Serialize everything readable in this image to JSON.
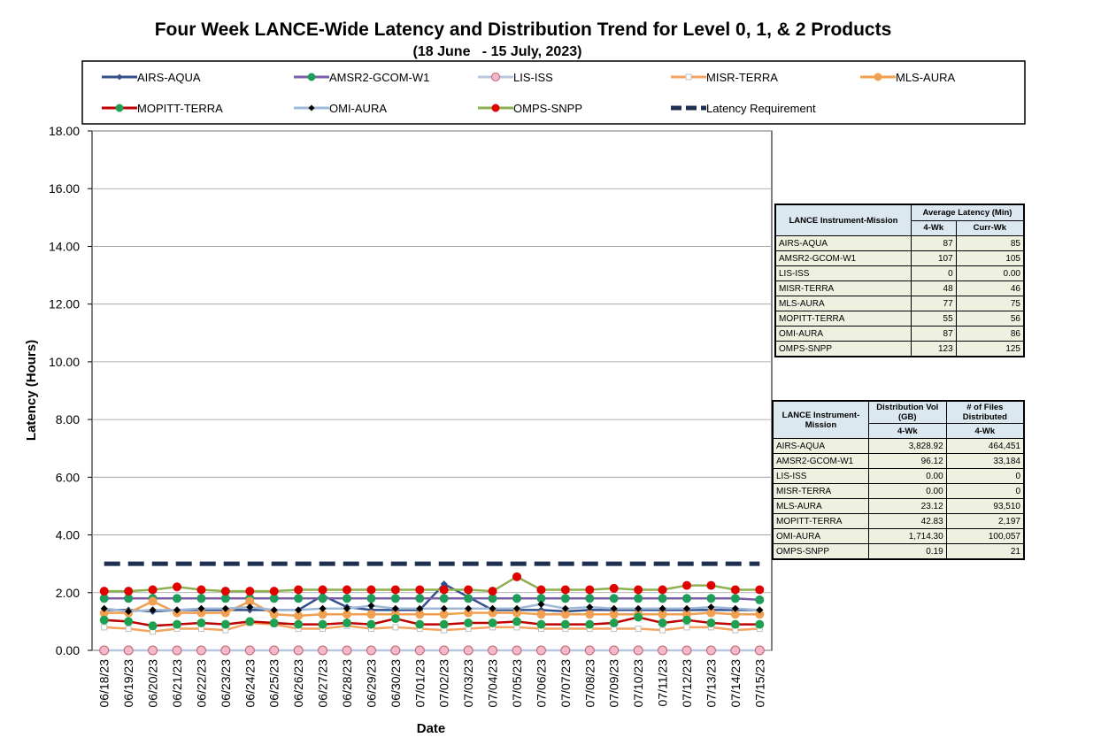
{
  "chart_data": {
    "type": "line",
    "title": "Four Week LANCE-Wide Latency and Distribution Trend for Level 0, 1, & 2 Products",
    "subtitle": "(18 June   - 15 July, 2023)",
    "y_label": "Latency (Hours)",
    "x_label": "Date",
    "categories": [
      "06/18/23",
      "06/19/23",
      "06/20/23",
      "06/21/23",
      "06/22/23",
      "06/23/23",
      "06/24/23",
      "06/25/23",
      "06/26/23",
      "06/27/23",
      "06/28/23",
      "06/29/23",
      "06/30/23",
      "07/01/23",
      "07/02/23",
      "07/03/23",
      "07/04/23",
      "07/05/23",
      "07/06/23",
      "07/07/23",
      "07/08/23",
      "07/09/23",
      "07/10/23",
      "07/11/23",
      "07/12/23",
      "07/13/23",
      "07/14/23",
      "07/15/23"
    ],
    "ylim": [
      0,
      18
    ],
    "yticks": [
      {
        "value": 0,
        "label": "0.00"
      },
      {
        "value": 2,
        "label": "2.00"
      },
      {
        "value": 4,
        "label": "4.00"
      },
      {
        "value": 6,
        "label": "6.00"
      },
      {
        "value": 8,
        "label": "8.00"
      },
      {
        "value": 10,
        "label": "10.00"
      },
      {
        "value": 12,
        "label": "12.00"
      },
      {
        "value": 14,
        "label": "14.00"
      },
      {
        "value": 16,
        "label": "16.00"
      },
      {
        "value": 18,
        "label": "18.00"
      }
    ],
    "grid": true,
    "series": [
      {
        "name": "AIRS-AQUA",
        "color": "#34508a",
        "marker_color": "#34508a",
        "marker": "diamond",
        "values": [
          1.4,
          1.4,
          1.35,
          1.4,
          1.4,
          1.4,
          1.4,
          1.4,
          1.4,
          1.9,
          1.5,
          1.4,
          1.4,
          1.4,
          2.3,
          1.85,
          1.4,
          1.4,
          1.4,
          1.35,
          1.4,
          1.4,
          1.4,
          1.4,
          1.4,
          1.4,
          1.4,
          1.4
        ]
      },
      {
        "name": "AMSR2-GCOM-W1",
        "color": "#7b5ea7",
        "marker_color": "#1e9e5a",
        "marker": "circle",
        "values": [
          1.8,
          1.8,
          1.8,
          1.8,
          1.8,
          1.8,
          1.8,
          1.8,
          1.8,
          1.8,
          1.8,
          1.8,
          1.8,
          1.8,
          1.8,
          1.8,
          1.8,
          1.8,
          1.8,
          1.8,
          1.8,
          1.8,
          1.8,
          1.8,
          1.8,
          1.8,
          1.8,
          1.75
        ]
      },
      {
        "name": "LIS-ISS",
        "color": "#b8c8e0",
        "marker_color": "#f4b8c8",
        "marker": "circle",
        "values": [
          0,
          0,
          0,
          0,
          0,
          0,
          0,
          0,
          0,
          0,
          0,
          0,
          0,
          0,
          0,
          0,
          0,
          0,
          0,
          0,
          0,
          0,
          0,
          0,
          0,
          0,
          0,
          0
        ]
      },
      {
        "name": "MISR-TERRA",
        "color": "#f4a460",
        "marker_color": "#c0c0c0",
        "marker": "square",
        "values": [
          0.8,
          0.75,
          0.65,
          0.75,
          0.75,
          0.7,
          0.95,
          0.9,
          0.75,
          0.75,
          0.85,
          0.75,
          0.8,
          0.75,
          0.7,
          0.75,
          0.8,
          0.8,
          0.75,
          0.75,
          0.75,
          0.75,
          0.75,
          0.7,
          0.8,
          0.8,
          0.7,
          0.75
        ]
      },
      {
        "name": "MLS-AURA",
        "color": "#f0a050",
        "marker_color": "#f0a050",
        "marker": "circle",
        "values": [
          1.3,
          1.3,
          1.7,
          1.3,
          1.3,
          1.3,
          1.7,
          1.25,
          1.2,
          1.25,
          1.25,
          1.25,
          1.25,
          1.25,
          1.25,
          1.3,
          1.3,
          1.3,
          1.25,
          1.25,
          1.25,
          1.25,
          1.25,
          1.25,
          1.25,
          1.3,
          1.25,
          1.25
        ]
      },
      {
        "name": "MOPITT-TERRA",
        "color": "#c00000",
        "marker_color": "#1ea050",
        "marker": "circle",
        "values": [
          1.05,
          1.0,
          0.85,
          0.9,
          0.95,
          0.9,
          1.0,
          0.95,
          0.9,
          0.9,
          0.95,
          0.9,
          1.1,
          0.9,
          0.9,
          0.95,
          0.95,
          1.0,
          0.9,
          0.9,
          0.9,
          0.95,
          1.15,
          0.95,
          1.05,
          0.95,
          0.9,
          0.9
        ]
      },
      {
        "name": "OMI-AURA",
        "color": "#9fb8d8",
        "marker_color": "#000000",
        "marker": "diamond",
        "values": [
          1.45,
          1.35,
          1.4,
          1.4,
          1.45,
          1.45,
          1.5,
          1.4,
          1.4,
          1.45,
          1.45,
          1.55,
          1.45,
          1.45,
          1.45,
          1.45,
          1.45,
          1.45,
          1.6,
          1.45,
          1.5,
          1.45,
          1.45,
          1.45,
          1.45,
          1.5,
          1.45,
          1.4
        ]
      },
      {
        "name": "OMPS-SNPP",
        "color": "#8db050",
        "marker_color": "#e00000",
        "marker": "circle",
        "values": [
          2.05,
          2.05,
          2.1,
          2.2,
          2.1,
          2.05,
          2.05,
          2.05,
          2.1,
          2.1,
          2.1,
          2.1,
          2.1,
          2.1,
          2.1,
          2.1,
          2.05,
          2.55,
          2.1,
          2.1,
          2.1,
          2.15,
          2.1,
          2.1,
          2.25,
          2.25,
          2.1,
          2.1
        ]
      },
      {
        "name": "Latency Requirement",
        "color": "#1f2f4f",
        "marker": "none",
        "dashed": true,
        "values": [
          3,
          3,
          3,
          3,
          3,
          3,
          3,
          3,
          3,
          3,
          3,
          3,
          3,
          3,
          3,
          3,
          3,
          3,
          3,
          3,
          3,
          3,
          3,
          3,
          3,
          3,
          3,
          3
        ]
      }
    ]
  },
  "latency_table": {
    "header": [
      "LANCE Instrument-Mission",
      "Average Latency (Min)",
      "4-Wk",
      "Curr-Wk"
    ],
    "rows": [
      [
        "AIRS-AQUA",
        "87",
        "85"
      ],
      [
        "AMSR2-GCOM-W1",
        "107",
        "105"
      ],
      [
        "LIS-ISS",
        "0",
        "0.00"
      ],
      [
        "MISR-TERRA",
        "48",
        "46"
      ],
      [
        "MLS-AURA",
        "77",
        "75"
      ],
      [
        "MOPITT-TERRA",
        "55",
        "56"
      ],
      [
        "OMI-AURA",
        "87",
        "86"
      ],
      [
        "OMPS-SNPP",
        "123",
        "125"
      ]
    ]
  },
  "distribution_table": {
    "header": [
      "LANCE Instrument-Mission",
      "Distribution Vol (GB)",
      "# of Files Distributed",
      "4-Wk",
      "4-Wk"
    ],
    "rows": [
      [
        "AIRS-AQUA",
        "3,828.92",
        "464,451"
      ],
      [
        "AMSR2-GCOM-W1",
        "96.12",
        "33,184"
      ],
      [
        "LIS-ISS",
        "0.00",
        "0"
      ],
      [
        "MISR-TERRA",
        "0.00",
        "0"
      ],
      [
        "MLS-AURA",
        "23.12",
        "93,510"
      ],
      [
        "MOPITT-TERRA",
        "42.83",
        "2,197"
      ],
      [
        "OMI-AURA",
        "1,714.30",
        "100,057"
      ],
      [
        "OMPS-SNPP",
        "0.19",
        "21"
      ]
    ]
  }
}
